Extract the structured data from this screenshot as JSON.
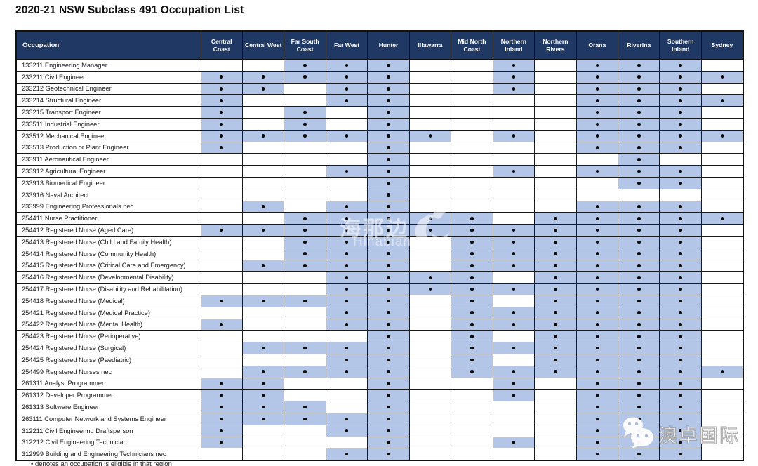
{
  "title": "2020-21 NSW Subclass 491 Occupation List",
  "table": {
    "occupation_header": "Occupation",
    "regions": [
      "Central Coast",
      "Central West",
      "Far South Coast",
      "Far West",
      "Hunter",
      "Illawarra",
      "Mid North Coast",
      "Northern Inland",
      "Northern Rivers",
      "Orana",
      "Riverina",
      "Southern Inland",
      "Sydney"
    ],
    "dot_symbol": "•",
    "rows": [
      {
        "occupation": "133211 Engineering Manager",
        "eligible": [
          0,
          0,
          1,
          1,
          1,
          0,
          0,
          1,
          0,
          1,
          1,
          1,
          0
        ]
      },
      {
        "occupation": "233211 Civil Engineer",
        "eligible": [
          1,
          1,
          1,
          1,
          1,
          0,
          0,
          1,
          0,
          1,
          1,
          1,
          1
        ]
      },
      {
        "occupation": "233212 Geotechnical Engineer",
        "eligible": [
          1,
          1,
          0,
          1,
          1,
          0,
          0,
          1,
          0,
          1,
          1,
          1,
          0
        ]
      },
      {
        "occupation": "233214 Structural Engineer",
        "eligible": [
          1,
          0,
          0,
          1,
          1,
          0,
          0,
          0,
          0,
          1,
          1,
          1,
          1
        ]
      },
      {
        "occupation": "233215 Transport Engineer",
        "eligible": [
          1,
          0,
          1,
          0,
          1,
          0,
          0,
          0,
          0,
          1,
          1,
          1,
          0
        ]
      },
      {
        "occupation": "233511 Industrial Engineer",
        "eligible": [
          1,
          0,
          1,
          0,
          1,
          0,
          0,
          0,
          0,
          1,
          1,
          1,
          0
        ]
      },
      {
        "occupation": "233512 Mechanical Engineer",
        "eligible": [
          1,
          1,
          1,
          1,
          1,
          1,
          0,
          1,
          0,
          1,
          1,
          1,
          1
        ]
      },
      {
        "occupation": "233513 Production or Plant Engineer",
        "eligible": [
          1,
          0,
          0,
          0,
          1,
          0,
          0,
          0,
          0,
          1,
          1,
          1,
          0
        ]
      },
      {
        "occupation": "233911 Aeronautical Engineer",
        "eligible": [
          0,
          0,
          0,
          0,
          1,
          0,
          0,
          0,
          0,
          0,
          1,
          0,
          0
        ]
      },
      {
        "occupation": "233912 Agricultural Engineer",
        "eligible": [
          0,
          0,
          0,
          1,
          1,
          0,
          0,
          1,
          0,
          1,
          1,
          1,
          0
        ]
      },
      {
        "occupation": "233913 Biomedical Engineer",
        "eligible": [
          0,
          0,
          0,
          0,
          1,
          0,
          0,
          0,
          0,
          0,
          1,
          1,
          0
        ]
      },
      {
        "occupation": "233916 Naval Architect",
        "eligible": [
          0,
          0,
          0,
          0,
          1,
          0,
          0,
          0,
          0,
          0,
          0,
          0,
          0
        ]
      },
      {
        "occupation": "233999 Engineering Professionals nec",
        "eligible": [
          0,
          1,
          0,
          1,
          1,
          0,
          0,
          0,
          0,
          1,
          1,
          1,
          0
        ]
      },
      {
        "occupation": "254411 Nurse Practitioner",
        "eligible": [
          0,
          0,
          1,
          1,
          1,
          1,
          1,
          0,
          1,
          1,
          1,
          1,
          1
        ]
      },
      {
        "occupation": "254412 Registered Nurse (Aged Care)",
        "eligible": [
          1,
          1,
          1,
          1,
          1,
          1,
          1,
          1,
          1,
          1,
          1,
          1,
          0
        ]
      },
      {
        "occupation": "254413 Registered Nurse (Child and Family Health)",
        "eligible": [
          0,
          0,
          1,
          1,
          1,
          0,
          1,
          1,
          1,
          1,
          1,
          1,
          0
        ]
      },
      {
        "occupation": "254414 Registered Nurse (Community Health)",
        "eligible": [
          0,
          0,
          1,
          1,
          1,
          0,
          1,
          1,
          1,
          1,
          1,
          1,
          0
        ]
      },
      {
        "occupation": "254415 Registered Nurse (Critical Care and Emergency)",
        "eligible": [
          0,
          1,
          1,
          1,
          1,
          0,
          1,
          1,
          1,
          1,
          1,
          1,
          0
        ]
      },
      {
        "occupation": "254416 Registered Nurse (Developmental Disability)",
        "eligible": [
          0,
          0,
          0,
          1,
          1,
          1,
          1,
          0,
          1,
          1,
          1,
          1,
          0
        ]
      },
      {
        "occupation": "254417 Registered Nurse (Disability and Rehabilitation)",
        "eligible": [
          0,
          0,
          0,
          1,
          1,
          1,
          1,
          1,
          1,
          1,
          1,
          1,
          0
        ]
      },
      {
        "occupation": "254418 Registered Nurse (Medical)",
        "eligible": [
          1,
          1,
          1,
          1,
          1,
          0,
          1,
          0,
          1,
          1,
          1,
          1,
          0
        ]
      },
      {
        "occupation": "254421 Registered Nurse (Medical Practice)",
        "eligible": [
          0,
          0,
          0,
          1,
          1,
          0,
          1,
          1,
          1,
          1,
          1,
          1,
          0
        ]
      },
      {
        "occupation": "254422 Registered Nurse (Mental Health)",
        "eligible": [
          1,
          0,
          0,
          1,
          1,
          0,
          1,
          1,
          1,
          1,
          1,
          1,
          0
        ]
      },
      {
        "occupation": "254423 Registered Nurse (Perioperative)",
        "eligible": [
          0,
          0,
          0,
          0,
          1,
          0,
          1,
          0,
          1,
          1,
          1,
          1,
          0
        ]
      },
      {
        "occupation": "254424 Registered Nurse (Surgical)",
        "eligible": [
          0,
          1,
          1,
          1,
          1,
          0,
          1,
          1,
          1,
          1,
          1,
          1,
          0
        ]
      },
      {
        "occupation": "254425 Registered Nurse (Paediatric)",
        "eligible": [
          0,
          0,
          0,
          1,
          1,
          0,
          1,
          0,
          1,
          1,
          1,
          1,
          0
        ]
      },
      {
        "occupation": "254499 Registered Nurses nec",
        "eligible": [
          0,
          1,
          1,
          1,
          1,
          0,
          1,
          1,
          1,
          1,
          1,
          1,
          1
        ]
      },
      {
        "occupation": "261311 Analyst Programmer",
        "eligible": [
          1,
          1,
          0,
          0,
          1,
          0,
          0,
          1,
          0,
          1,
          1,
          1,
          0
        ]
      },
      {
        "occupation": "261312 Developer Programmer",
        "eligible": [
          1,
          1,
          0,
          0,
          1,
          0,
          0,
          1,
          0,
          1,
          1,
          1,
          0
        ]
      },
      {
        "occupation": "261313 Software Engineer",
        "eligible": [
          1,
          1,
          1,
          0,
          1,
          0,
          0,
          0,
          0,
          1,
          1,
          1,
          0
        ]
      },
      {
        "occupation": "263111 Computer Network and Systems Engineer",
        "eligible": [
          1,
          1,
          1,
          1,
          1,
          0,
          0,
          0,
          0,
          1,
          1,
          1,
          0
        ]
      },
      {
        "occupation": "312211 Civil Engineering Draftsperson",
        "eligible": [
          1,
          0,
          0,
          1,
          1,
          0,
          0,
          0,
          0,
          1,
          1,
          1,
          0
        ]
      },
      {
        "occupation": "312212 Civil Engineering Technician",
        "eligible": [
          1,
          0,
          0,
          0,
          1,
          0,
          0,
          1,
          0,
          1,
          1,
          1,
          0
        ]
      },
      {
        "occupation": "312999 Building and Engineering Technicians nec",
        "eligible": [
          0,
          0,
          0,
          1,
          1,
          0,
          0,
          0,
          0,
          1,
          1,
          1,
          0
        ]
      }
    ]
  },
  "footnote": "• denotes an occupation is eligible in that region",
  "watermarks": {
    "hinabian_cn": "海那边",
    "hinabian_en": "Hinabian",
    "aozhuo": "澳卓国际"
  },
  "colors": {
    "header_bg": "#1f3864",
    "header_text": "#ffffff",
    "cell_shaded": "#b4c6e7",
    "border": "#1a1a1a",
    "dot": "#0a0a0a"
  }
}
